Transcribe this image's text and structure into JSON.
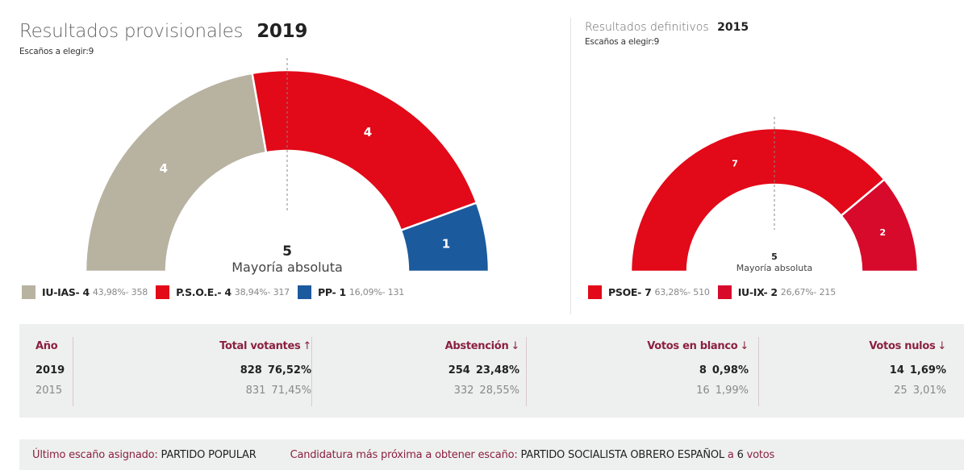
{
  "chart_data": [
    {
      "type": "pie",
      "variant": "semicircle-parliament",
      "title": "Resultados provisionales",
      "year": "2019",
      "seats_note": "Escaños a elegir:9",
      "total_seats": 9,
      "majority": {
        "value": "5",
        "label": "Mayoría absoluta"
      },
      "series": [
        {
          "name": "IU-IAS",
          "seats": 4,
          "percent": "43,98%",
          "votes": 358,
          "color": "#b8b2a1"
        },
        {
          "name": "P.S.O.E.",
          "seats": 4,
          "percent": "38,94%",
          "votes": 317,
          "color": "#e20918"
        },
        {
          "name": "PP",
          "seats": 1,
          "percent": "16,09%",
          "votes": 131,
          "color": "#1c5a9e"
        }
      ]
    },
    {
      "type": "pie",
      "variant": "semicircle-parliament",
      "title": "Resultados definitivos",
      "year": "2015",
      "seats_note": "Escaños a elegir:9",
      "total_seats": 9,
      "majority": {
        "value": "5",
        "label": "Mayoría absoluta"
      },
      "series": [
        {
          "name": "PSOE",
          "seats": 7,
          "percent": "63,28%",
          "votes": 510,
          "color": "#e20918"
        },
        {
          "name": "IU-IX",
          "seats": 2,
          "percent": "26,67%",
          "votes": 215,
          "color": "#d80a2c"
        }
      ]
    }
  ],
  "stats": {
    "headers": [
      {
        "label": "Año",
        "arrow": ""
      },
      {
        "label": "Total votantes",
        "arrow": "↑"
      },
      {
        "label": "Abstención",
        "arrow": "↓"
      },
      {
        "label": "Votos en blanco",
        "arrow": "↓"
      },
      {
        "label": "Votos nulos",
        "arrow": "↓"
      }
    ],
    "rows": [
      {
        "year": "2019",
        "total": [
          "828",
          "76,52%"
        ],
        "abst": [
          "254",
          "23,48%"
        ],
        "blank": [
          "8",
          "0,98%"
        ],
        "null": [
          "14",
          "1,69%"
        ]
      },
      {
        "year": "2015",
        "total": [
          "831",
          "71,45%"
        ],
        "abst": [
          "332",
          "28,55%"
        ],
        "blank": [
          "16",
          "1,99%"
        ],
        "null": [
          "25",
          "3,01%"
        ]
      }
    ]
  },
  "footer": {
    "last_seat_label": "Último escaño asignado:",
    "last_seat_value": "PARTIDO POPULAR",
    "closest_label": "Candidatura más próxima a obtener escaño:",
    "closest_value": "PARTIDO SOCIALISTA OBRERO ESPAÑOL",
    "closest_a": "a",
    "closest_votes": "6",
    "closest_votes_label": "votos"
  }
}
